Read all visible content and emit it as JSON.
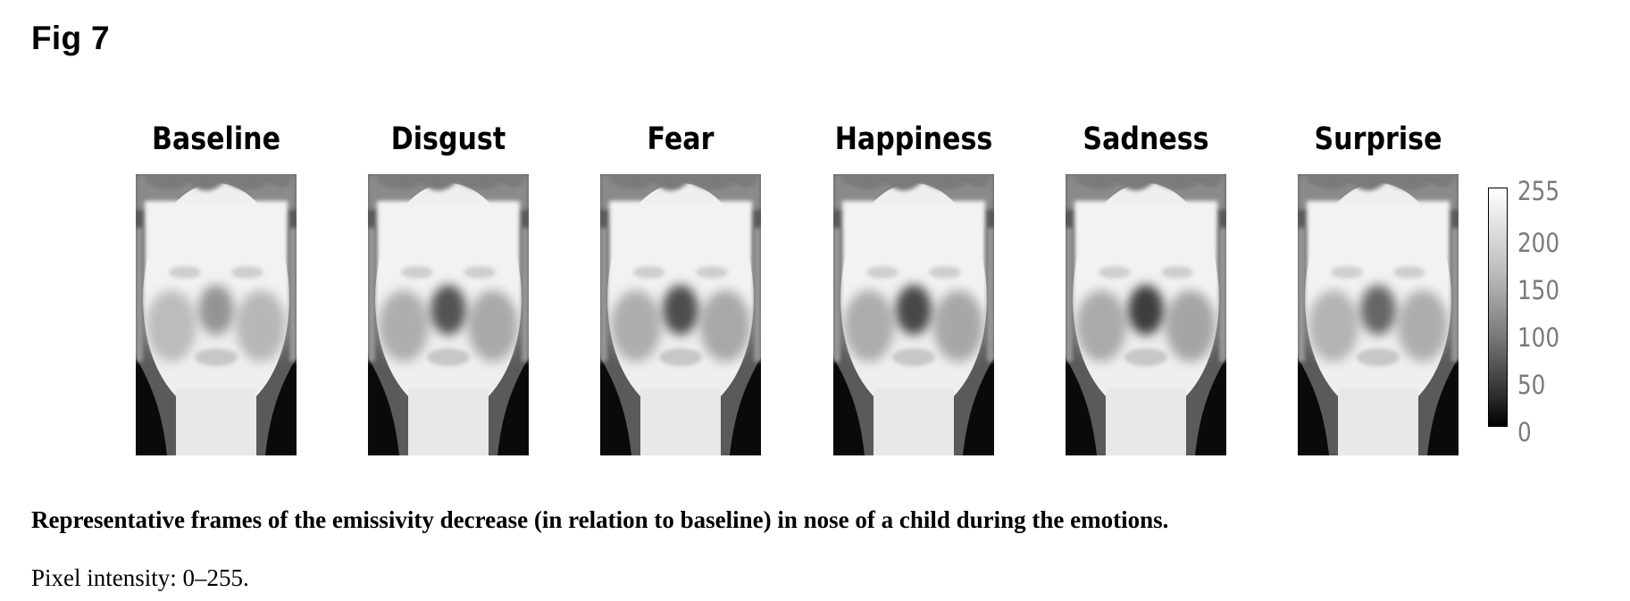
{
  "figure": {
    "label": "Fig 7",
    "panels": [
      {
        "title": "Baseline",
        "nose_level": 0.58
      },
      {
        "title": "Disgust",
        "nose_level": 0.32
      },
      {
        "title": "Fear",
        "nose_level": 0.3
      },
      {
        "title": "Happiness",
        "nose_level": 0.28
      },
      {
        "title": "Sadness",
        "nose_level": 0.24
      },
      {
        "title": "Surprise",
        "nose_level": 0.4
      }
    ],
    "colorbar": {
      "ticks": [
        "255",
        "200",
        "150",
        "100",
        "50",
        "0"
      ],
      "min": 0,
      "max": 255
    },
    "caption": "Representative frames of the emissivity decrease (in relation to baseline) in nose of a child during the emotions.",
    "note": "Pixel intensity: 0–255."
  }
}
